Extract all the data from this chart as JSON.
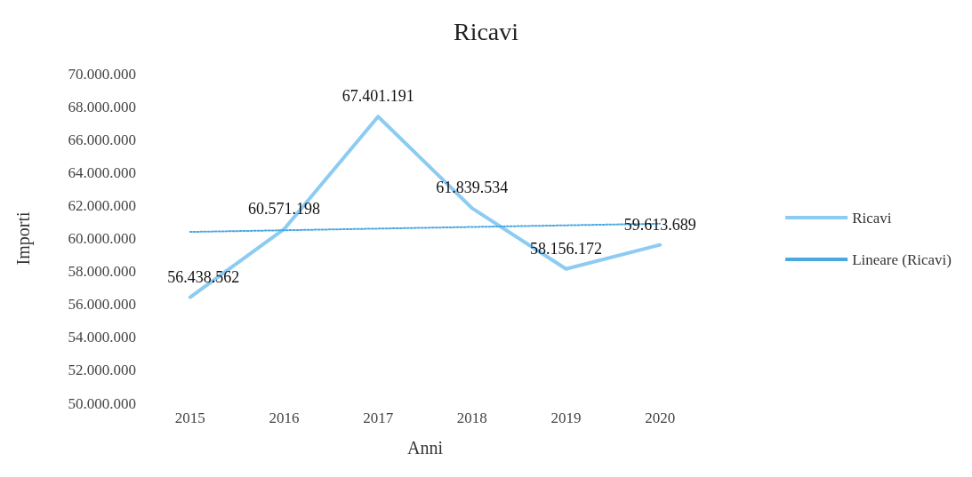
{
  "chart_data": {
    "type": "line",
    "title": "Ricavi",
    "xlabel": "Anni",
    "ylabel": "Importi",
    "categories": [
      "2015",
      "2016",
      "2017",
      "2018",
      "2019",
      "2020"
    ],
    "series": [
      {
        "name": "Ricavi",
        "color": "#8ccbf2",
        "values": [
          56438562,
          60571198,
          67401191,
          61839534,
          58156172,
          59613689
        ],
        "value_labels": [
          "56.438.562",
          "60.571.198",
          "67.401.191",
          "61.839.534",
          "58.156.172",
          "59.613.689"
        ]
      },
      {
        "name": "Lineare (Ricavi)",
        "type": "line",
        "color": "#4aa8e0",
        "line_style": "dotted",
        "values": [
          60400000,
          60500000,
          60600000,
          60700000,
          60800000,
          60900000
        ]
      }
    ],
    "ylim": [
      50000000,
      70000000
    ],
    "yticks": [
      {
        "value": 50000000,
        "label": "50.000.000"
      },
      {
        "value": 52000000,
        "label": "52.000.000"
      },
      {
        "value": 54000000,
        "label": "54.000.000"
      },
      {
        "value": 56000000,
        "label": "56.000.000"
      },
      {
        "value": 58000000,
        "label": "58.000.000"
      },
      {
        "value": 60000000,
        "label": "60.000.000"
      },
      {
        "value": 62000000,
        "label": "62.000.000"
      },
      {
        "value": 64000000,
        "label": "64.000.000"
      },
      {
        "value": 66000000,
        "label": "66.000.000"
      },
      {
        "value": 68000000,
        "label": "68.000.000"
      },
      {
        "value": 70000000,
        "label": "70.000.000"
      }
    ],
    "grid": false,
    "legend": "right",
    "marker": "none",
    "line_style": "solid"
  }
}
